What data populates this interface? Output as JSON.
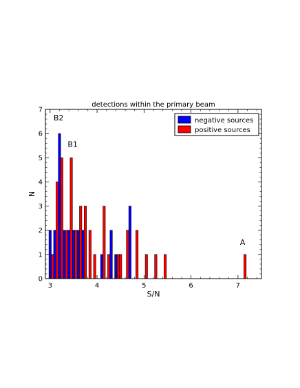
{
  "chart_data": {
    "type": "bar",
    "title": "detections within the primary beam",
    "xlabel": "S/N",
    "ylabel": "N",
    "xlim": [
      2.9,
      7.5
    ],
    "ylim": [
      0,
      7
    ],
    "xticks": [
      3,
      4,
      5,
      6,
      7
    ],
    "yticks": [
      0,
      1,
      2,
      3,
      4,
      5,
      6,
      7
    ],
    "grid": false,
    "legend_position": "top-right",
    "bin_width": 0.05,
    "series": [
      {
        "name": "negative sources",
        "color": "#0000ff",
        "bins": [
          {
            "x": 3.0,
            "y": 2
          },
          {
            "x": 3.1,
            "y": 2
          },
          {
            "x": 3.2,
            "y": 6
          },
          {
            "x": 3.3,
            "y": 2
          },
          {
            "x": 3.4,
            "y": 2
          },
          {
            "x": 3.5,
            "y": 2
          },
          {
            "x": 3.6,
            "y": 2
          },
          {
            "x": 3.7,
            "y": 2
          },
          {
            "x": 4.1,
            "y": 1
          },
          {
            "x": 4.3,
            "y": 2
          },
          {
            "x": 4.4,
            "y": 1
          },
          {
            "x": 4.65,
            "y": 2
          },
          {
            "x": 4.7,
            "y": 3
          }
        ]
      },
      {
        "name": "positive sources",
        "color": "#ff0000",
        "bins": [
          {
            "x": 3.05,
            "y": 1
          },
          {
            "x": 3.15,
            "y": 4
          },
          {
            "x": 3.25,
            "y": 5
          },
          {
            "x": 3.35,
            "y": 2
          },
          {
            "x": 3.45,
            "y": 5
          },
          {
            "x": 3.55,
            "y": 2
          },
          {
            "x": 3.65,
            "y": 3
          },
          {
            "x": 3.75,
            "y": 3
          },
          {
            "x": 3.85,
            "y": 2
          },
          {
            "x": 3.95,
            "y": 1
          },
          {
            "x": 4.15,
            "y": 3
          },
          {
            "x": 4.25,
            "y": 1
          },
          {
            "x": 4.45,
            "y": 1
          },
          {
            "x": 4.5,
            "y": 1
          },
          {
            "x": 4.65,
            "y": 2
          },
          {
            "x": 4.85,
            "y": 2
          },
          {
            "x": 5.05,
            "y": 1
          },
          {
            "x": 5.25,
            "y": 1
          },
          {
            "x": 5.45,
            "y": 1
          },
          {
            "x": 7.15,
            "y": 1
          }
        ]
      }
    ],
    "annotations": [
      {
        "text": "B2",
        "x": 3.18,
        "y": 6.55
      },
      {
        "text": "B1",
        "x": 3.48,
        "y": 5.45
      },
      {
        "text": "A",
        "x": 7.1,
        "y": 1.4
      }
    ]
  }
}
